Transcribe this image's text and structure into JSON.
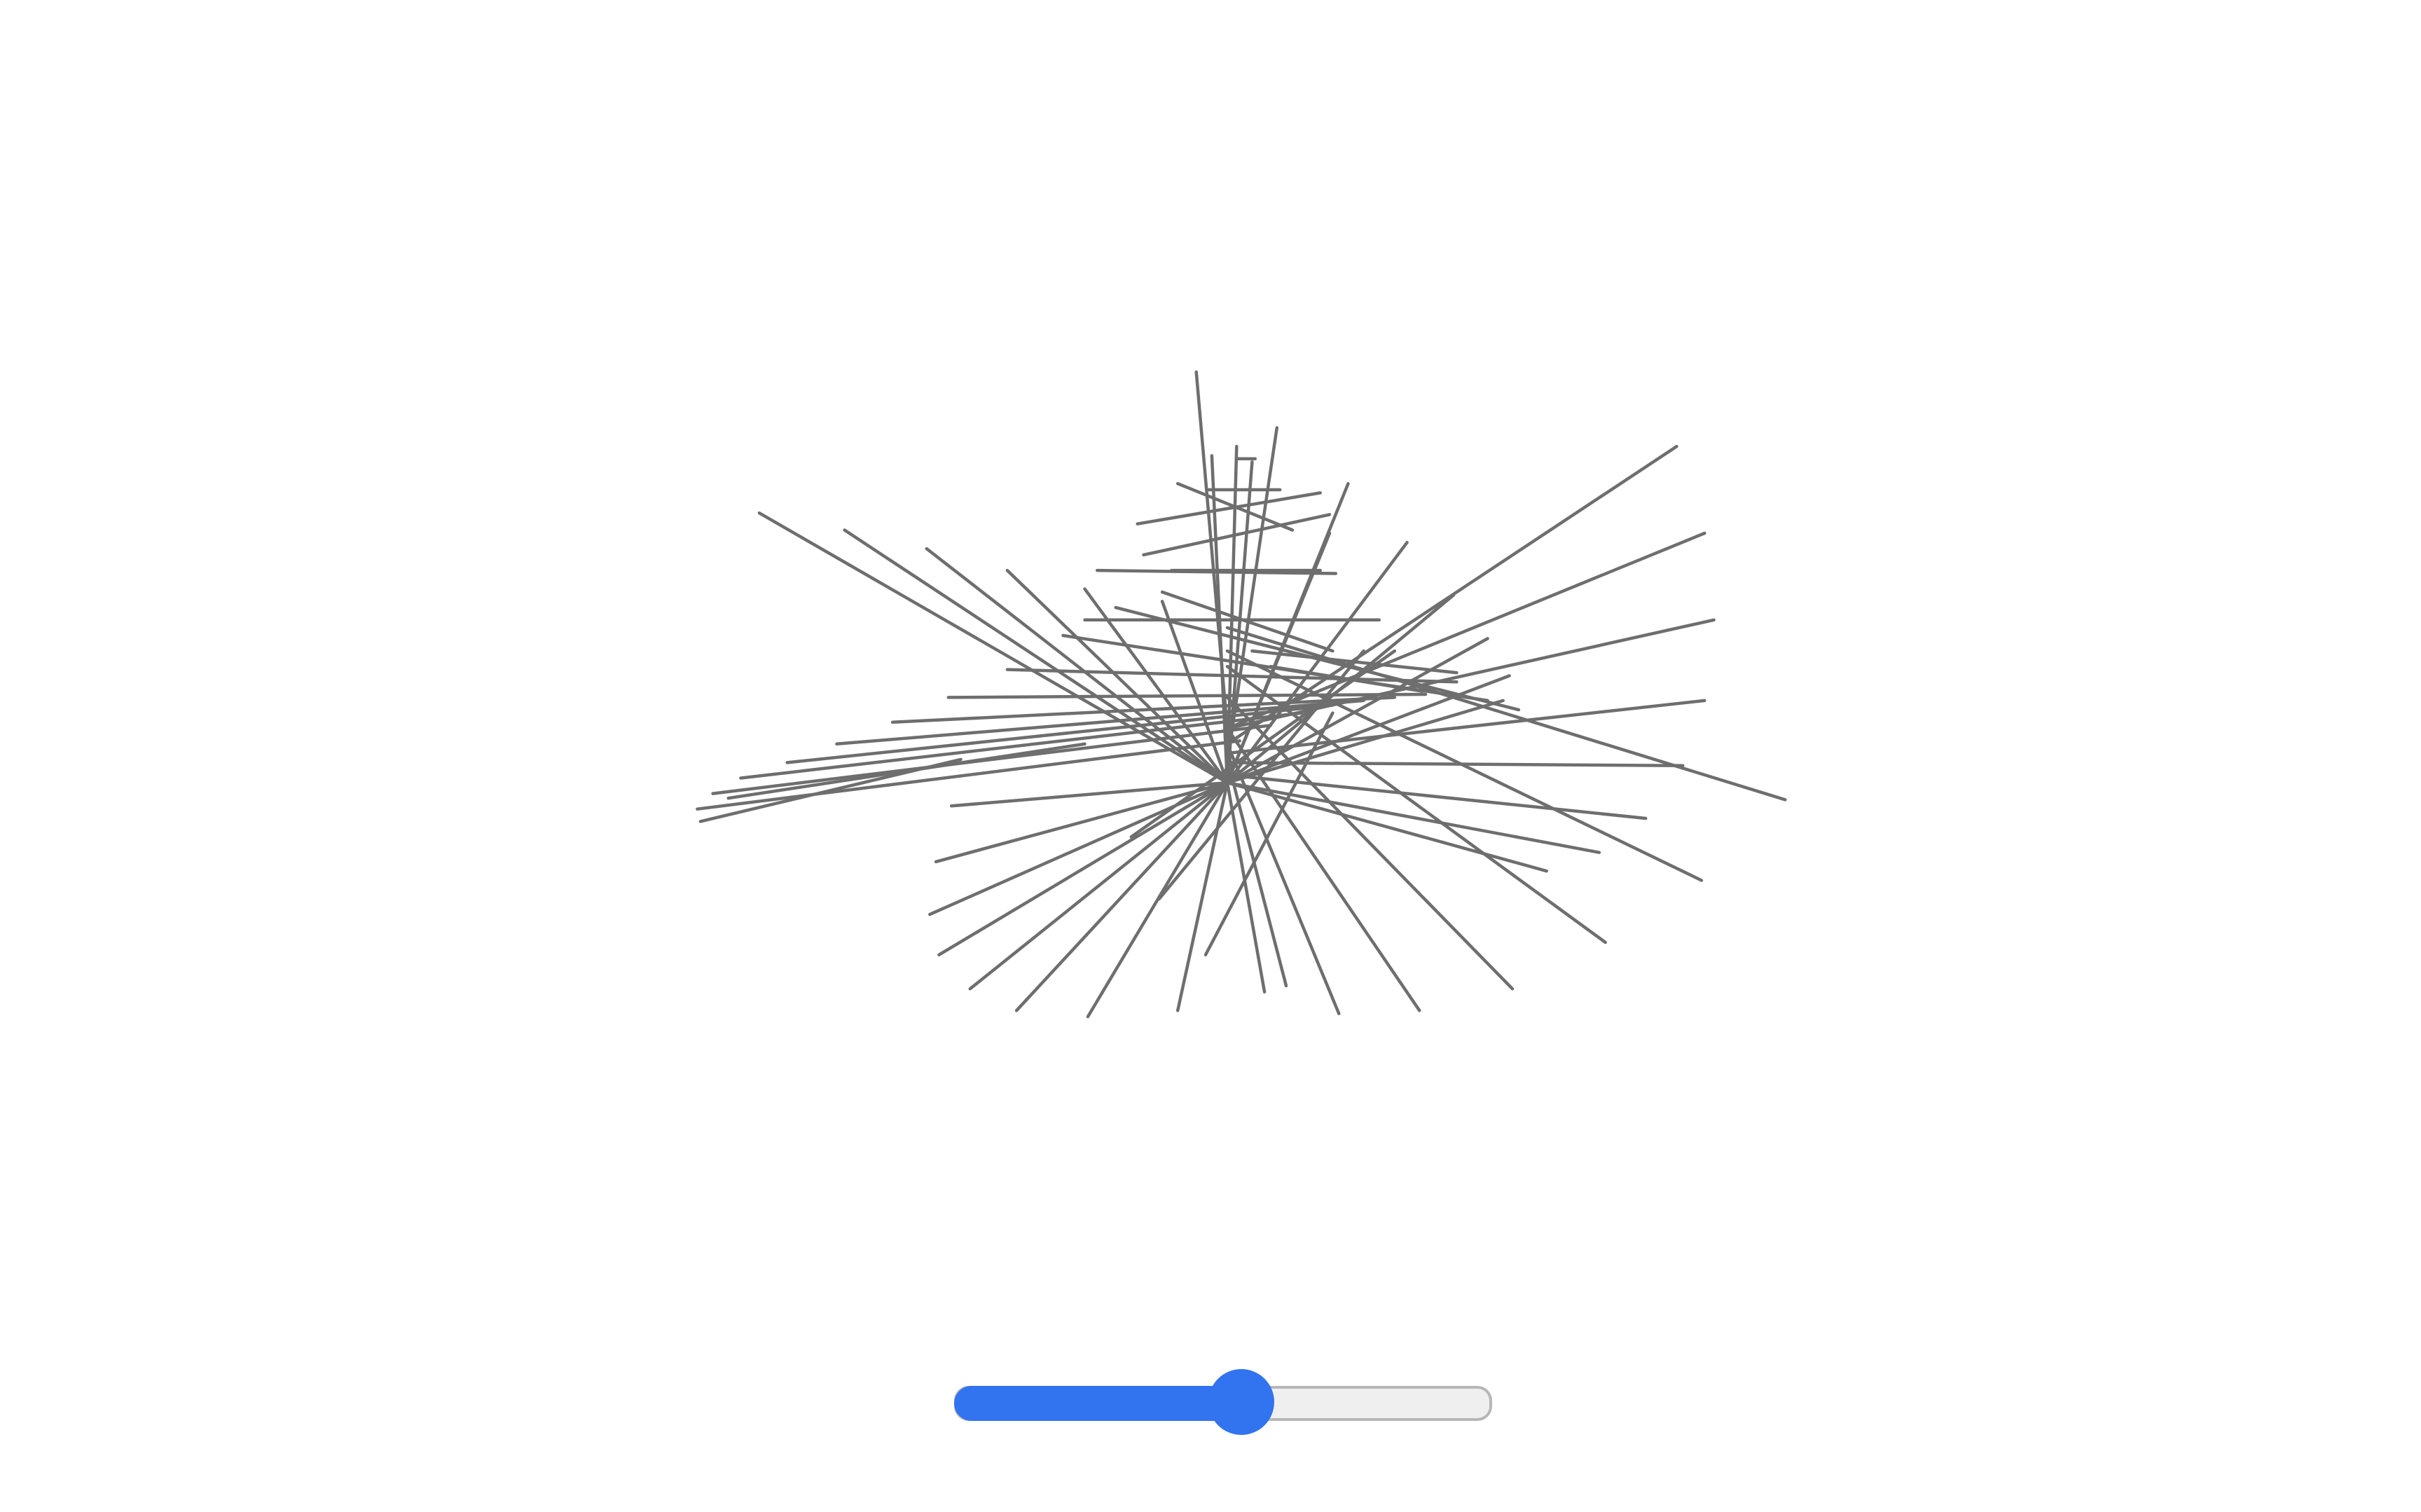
{
  "colors": {
    "background": "#ffffff",
    "line_stroke": "#6e6e6e",
    "slider_accent": "#3273ef",
    "slider_track": "#efefef",
    "slider_border": "#b7b7b7"
  },
  "slider": {
    "value": 0.5,
    "icon": "slider-thumb"
  }
}
